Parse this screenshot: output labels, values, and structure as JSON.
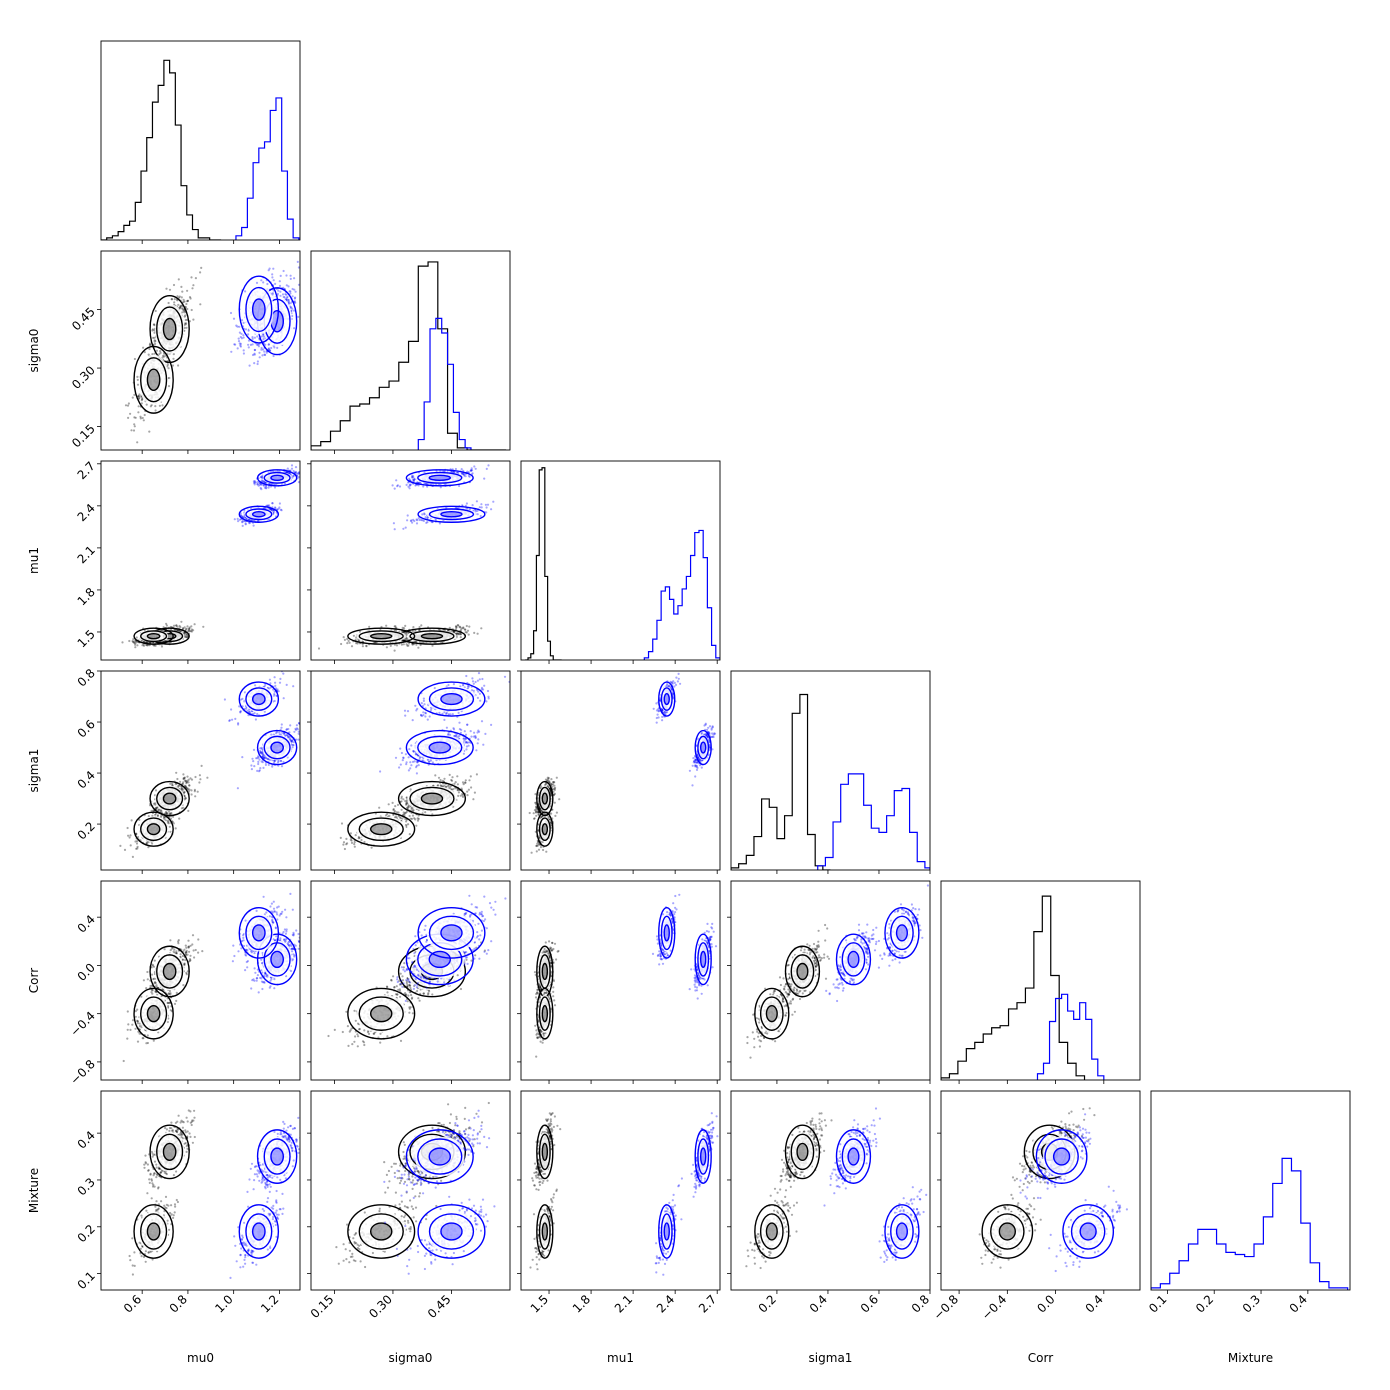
{
  "colors": {
    "series_a": "#000000",
    "series_b": "#0000ff",
    "frame": "#000000"
  },
  "chart_data": {
    "type": "corner",
    "params": [
      {
        "key": "mu0",
        "label": "mu0",
        "range": [
          0.42,
          1.29
        ],
        "ticks": [
          "0.6",
          "0.8",
          "1.0",
          "1.2"
        ],
        "tick_values": [
          0.6,
          0.8,
          1.0,
          1.2
        ]
      },
      {
        "key": "sigma0",
        "label": "sigma0",
        "range": [
          0.09,
          0.6
        ],
        "ticks": [
          "0.15",
          "0.30",
          "0.45"
        ],
        "tick_values": [
          0.15,
          0.3,
          0.45
        ]
      },
      {
        "key": "mu1",
        "label": "mu1",
        "range": [
          1.3,
          2.72
        ],
        "ticks": [
          "1.5",
          "1.8",
          "2.1",
          "2.4",
          "2.7"
        ],
        "tick_values": [
          1.5,
          1.8,
          2.1,
          2.4,
          2.7
        ]
      },
      {
        "key": "sigma1",
        "label": "sigma1",
        "range": [
          0.02,
          0.8
        ],
        "ticks": [
          "0.2",
          "0.4",
          "0.6",
          "0.8"
        ],
        "tick_values": [
          0.2,
          0.4,
          0.6,
          0.8
        ]
      },
      {
        "key": "corr",
        "label": "Corr",
        "range": [
          -0.95,
          0.7
        ],
        "ticks": [
          "−0.8",
          "−0.4",
          "0.0",
          "0.4"
        ],
        "tick_values": [
          -0.8,
          -0.4,
          0.0,
          0.4
        ]
      },
      {
        "key": "mixture",
        "label": "Mixture",
        "range": [
          0.065,
          0.49
        ],
        "ticks": [
          "0.1",
          "0.2",
          "0.3",
          "0.4"
        ],
        "tick_values": [
          0.1,
          0.2,
          0.3,
          0.4
        ]
      }
    ],
    "series": [
      {
        "color": "#000000",
        "modes": [
          {
            "w": 0.65,
            "mean": [
              0.72,
              0.4,
              1.47,
              0.3,
              -0.05,
              0.36
            ]
          },
          {
            "w": 0.35,
            "mean": [
              0.65,
              0.27,
              1.47,
              0.18,
              -0.4,
              0.19
            ]
          }
        ]
      },
      {
        "color": "#0000ff",
        "modes": [
          {
            "w": 0.6,
            "mean": [
              1.19,
              0.42,
              2.6,
              0.5,
              0.05,
              0.35
            ]
          },
          {
            "w": 0.4,
            "mean": [
              1.11,
              0.45,
              2.34,
              0.69,
              0.27,
              0.19
            ]
          }
        ]
      }
    ],
    "histograms": {
      "mu0": [
        {
          "color": "#000000",
          "edges": [
            0.42,
            0.445,
            0.47,
            0.495,
            0.52,
            0.545,
            0.57,
            0.595,
            0.62,
            0.645,
            0.67,
            0.695,
            0.72,
            0.745,
            0.77,
            0.795,
            0.82,
            0.845,
            0.87,
            0.895,
            0.92,
            0.945
          ],
          "counts": [
            0.0,
            0.01,
            0.02,
            0.04,
            0.07,
            0.09,
            0.18,
            0.33,
            0.49,
            0.66,
            0.74,
            0.86,
            0.8,
            0.55,
            0.26,
            0.12,
            0.05,
            0.01,
            0.01,
            0.0,
            0.0
          ]
        },
        {
          "color": "#0000ff",
          "edges": [
            1.01,
            1.035,
            1.06,
            1.085,
            1.11,
            1.135,
            1.16,
            1.185,
            1.21,
            1.235,
            1.26,
            1.285
          ],
          "counts": [
            0.02,
            0.06,
            0.2,
            0.37,
            0.44,
            0.47,
            0.62,
            0.68,
            0.33,
            0.1,
            0.01
          ]
        }
      ],
      "sigma0": [
        {
          "color": "#000000",
          "edges": [
            0.09,
            0.115,
            0.14,
            0.165,
            0.19,
            0.215,
            0.24,
            0.265,
            0.29,
            0.315,
            0.34,
            0.365,
            0.39,
            0.415,
            0.44,
            0.465,
            0.49,
            0.515,
            0.54,
            0.565,
            0.59
          ],
          "counts": [
            0.02,
            0.04,
            0.09,
            0.14,
            0.21,
            0.22,
            0.25,
            0.3,
            0.33,
            0.42,
            0.52,
            0.88,
            0.9,
            0.58,
            0.08,
            0.01,
            0.0,
            0.0,
            0.0,
            0.0
          ]
        },
        {
          "color": "#0000ff",
          "edges": [
            0.365,
            0.38,
            0.395,
            0.41,
            0.425,
            0.44,
            0.455,
            0.47,
            0.485,
            0.5
          ],
          "counts": [
            0.05,
            0.23,
            0.58,
            0.63,
            0.56,
            0.41,
            0.18,
            0.05,
            0.01
          ]
        }
      ],
      "mu1": [
        {
          "color": "#000000",
          "edges": [
            1.33,
            1.35,
            1.37,
            1.39,
            1.41,
            1.43,
            1.45,
            1.47,
            1.49,
            1.51,
            1.53,
            1.55,
            1.57,
            1.59
          ],
          "counts": [
            0.0,
            0.01,
            0.03,
            0.14,
            0.5,
            0.91,
            0.92,
            0.4,
            0.09,
            0.02,
            0.0,
            0.0,
            0.0
          ]
        },
        {
          "color": "#0000ff",
          "edges": [
            2.18,
            2.21,
            2.24,
            2.27,
            2.3,
            2.33,
            2.36,
            2.39,
            2.42,
            2.45,
            2.48,
            2.51,
            2.54,
            2.57,
            2.6,
            2.63,
            2.66,
            2.69,
            2.72
          ],
          "counts": [
            0.01,
            0.04,
            0.1,
            0.19,
            0.33,
            0.35,
            0.29,
            0.22,
            0.26,
            0.34,
            0.4,
            0.5,
            0.61,
            0.62,
            0.49,
            0.25,
            0.07,
            0.01
          ]
        }
      ],
      "sigma1": [
        {
          "color": "#000000",
          "edges": [
            0.02,
            0.05,
            0.08,
            0.11,
            0.14,
            0.17,
            0.2,
            0.23,
            0.26,
            0.29,
            0.32,
            0.35,
            0.38,
            0.41
          ],
          "counts": [
            0.01,
            0.03,
            0.07,
            0.16,
            0.34,
            0.3,
            0.15,
            0.26,
            0.75,
            0.84,
            0.17,
            0.02,
            0.0
          ]
        },
        {
          "color": "#0000ff",
          "edges": [
            0.36,
            0.39,
            0.42,
            0.45,
            0.48,
            0.51,
            0.54,
            0.57,
            0.6,
            0.63,
            0.66,
            0.69,
            0.72,
            0.75,
            0.78,
            0.8
          ],
          "counts": [
            0.02,
            0.06,
            0.23,
            0.41,
            0.46,
            0.46,
            0.31,
            0.2,
            0.18,
            0.26,
            0.38,
            0.39,
            0.18,
            0.04,
            0.01
          ]
        }
      ],
      "corr": [
        {
          "color": "#000000",
          "edges": [
            -0.95,
            -0.88,
            -0.81,
            -0.74,
            -0.67,
            -0.6,
            -0.53,
            -0.46,
            -0.39,
            -0.32,
            -0.25,
            -0.18,
            -0.11,
            -0.04,
            0.03,
            0.1,
            0.17,
            0.24
          ],
          "counts": [
            0.01,
            0.03,
            0.09,
            0.15,
            0.18,
            0.22,
            0.25,
            0.26,
            0.34,
            0.37,
            0.44,
            0.71,
            0.88,
            0.5,
            0.18,
            0.08,
            0.02
          ]
        },
        {
          "color": "#0000ff",
          "edges": [
            -0.15,
            -0.1,
            -0.05,
            0.0,
            0.05,
            0.1,
            0.15,
            0.2,
            0.25,
            0.3,
            0.35,
            0.4
          ],
          "counts": [
            0.03,
            0.08,
            0.28,
            0.39,
            0.41,
            0.33,
            0.29,
            0.37,
            0.29,
            0.1,
            0.02
          ]
        }
      ],
      "mixture": [
        {
          "color": "#0000ff",
          "edges": [
            0.065,
            0.085,
            0.105,
            0.125,
            0.145,
            0.165,
            0.185,
            0.205,
            0.225,
            0.245,
            0.265,
            0.285,
            0.305,
            0.325,
            0.345,
            0.365,
            0.385,
            0.405,
            0.425,
            0.445,
            0.465,
            0.485
          ],
          "counts": [
            0.01,
            0.03,
            0.08,
            0.14,
            0.22,
            0.29,
            0.29,
            0.22,
            0.18,
            0.17,
            0.16,
            0.22,
            0.35,
            0.51,
            0.63,
            0.57,
            0.32,
            0.13,
            0.04,
            0.01,
            0.01
          ]
        }
      ]
    }
  }
}
